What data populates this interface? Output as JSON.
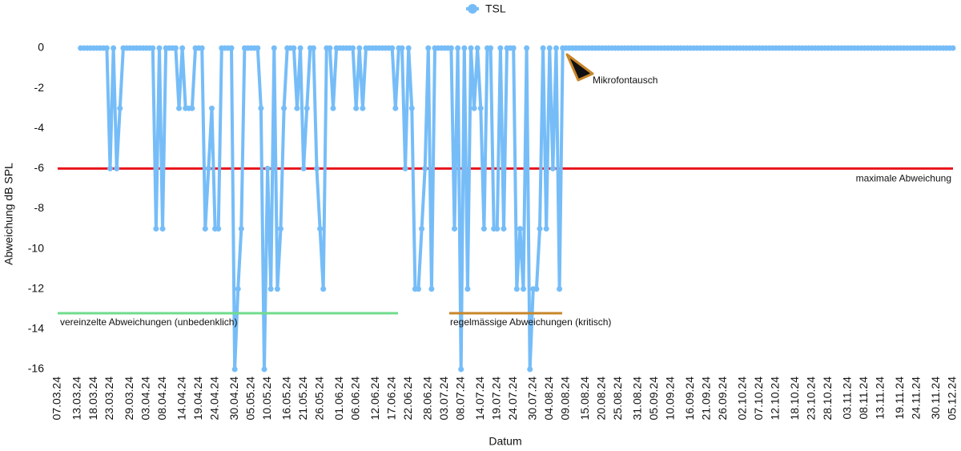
{
  "chart_data": {
    "type": "line",
    "legend": "top",
    "xlabel": "Datum",
    "ylabel": "Abweichung dB SPL",
    "ylim": [
      -16,
      0
    ],
    "yticks": [
      0,
      -2,
      -4,
      -6,
      -8,
      -10,
      -12,
      -14,
      -16
    ],
    "categories": [
      "07.03.24",
      null,
      null,
      null,
      null,
      null,
      "13.03.24",
      null,
      null,
      null,
      null,
      "18.03.24",
      null,
      null,
      null,
      null,
      "23.03.24",
      null,
      null,
      null,
      null,
      null,
      "29.03.24",
      null,
      null,
      null,
      null,
      "03.04.24",
      null,
      null,
      null,
      null,
      "08.04.24",
      null,
      null,
      null,
      null,
      null,
      "14.04.24",
      null,
      null,
      null,
      null,
      "19.04.24",
      null,
      null,
      null,
      null,
      "24.04.24",
      null,
      null,
      null,
      null,
      null,
      "30.04.24",
      null,
      null,
      null,
      null,
      "05.05.24",
      null,
      null,
      null,
      null,
      "10.05.24",
      null,
      null,
      null,
      null,
      null,
      "16.05.24",
      null,
      null,
      null,
      null,
      "21.05.24",
      null,
      null,
      null,
      null,
      "26.05.24",
      null,
      null,
      null,
      null,
      null,
      "01.06.24",
      null,
      null,
      null,
      null,
      "06.06.24",
      null,
      null,
      null,
      null,
      null,
      "12.06.24",
      null,
      null,
      null,
      null,
      "17.06.24",
      null,
      null,
      null,
      null,
      "22.06.24",
      null,
      null,
      null,
      null,
      null,
      "28.06.24",
      null,
      null,
      null,
      null,
      "03.07.24",
      null,
      null,
      null,
      null,
      "08.07.24",
      null,
      null,
      null,
      null,
      null,
      "14.07.24",
      null,
      null,
      null,
      null,
      "19.07.24",
      null,
      null,
      null,
      null,
      "24.07.24",
      null,
      null,
      null,
      null,
      null,
      "30.07.24",
      null,
      null,
      null,
      null,
      "04.08.24",
      null,
      null,
      null,
      null,
      "09.08.24",
      null,
      null,
      null,
      null,
      null,
      "15.08.24",
      null,
      null,
      null,
      null,
      "20.08.24",
      null,
      null,
      null,
      null,
      "25.08.24",
      null,
      null,
      null,
      null,
      null,
      "31.08.24",
      null,
      null,
      null,
      null,
      "05.09.24",
      null,
      null,
      null,
      null,
      "10.09.24",
      null,
      null,
      null,
      null,
      null,
      "16.09.24",
      null,
      null,
      null,
      null,
      "21.09.24",
      null,
      null,
      null,
      null,
      "26.09.24",
      null,
      null,
      null,
      null,
      null,
      "02.10.24",
      null,
      null,
      null,
      null,
      "07.10.24",
      null,
      null,
      null,
      null,
      "12.10.24",
      null,
      null,
      null,
      null,
      null,
      "18.10.24",
      null,
      null,
      null,
      null,
      "23.10.24",
      null,
      null,
      null,
      null,
      "28.10.24",
      null,
      null,
      null,
      null,
      null,
      "03.11.24",
      null,
      null,
      null,
      null,
      "08.11.24",
      null,
      null,
      null,
      null,
      "13.11.24",
      null,
      null,
      null,
      null,
      null,
      "19.11.24",
      null,
      null,
      null,
      null,
      "24.11.24",
      null,
      null,
      null,
      null,
      null,
      "30.11.24",
      null,
      null,
      null,
      null,
      "05.12.24"
    ],
    "series": [
      {
        "name": "TSL",
        "color": "#76bdf8",
        "values": [
          null,
          null,
          null,
          null,
          null,
          null,
          null,
          0,
          0,
          0,
          0,
          0,
          0,
          0,
          0,
          0,
          -6,
          0,
          -6,
          -3,
          0,
          0,
          0,
          0,
          0,
          0,
          0,
          0,
          0,
          0,
          -9,
          0,
          -9,
          0,
          0,
          0,
          0,
          -3,
          0,
          -3,
          -3,
          -3,
          0,
          0,
          0,
          -9,
          -6,
          -3,
          -9,
          -9,
          0,
          0,
          0,
          0,
          -16,
          -12,
          -9,
          0,
          0,
          0,
          0,
          0,
          -3,
          -16,
          -6,
          -12,
          0,
          -12,
          -9,
          -3,
          0,
          0,
          0,
          -3,
          0,
          -6,
          -3,
          0,
          0,
          -6,
          -9,
          -12,
          0,
          0,
          -3,
          0,
          0,
          0,
          0,
          0,
          0,
          -3,
          0,
          -3,
          0,
          0,
          0,
          0,
          0,
          0,
          0,
          0,
          0,
          -3,
          0,
          0,
          -6,
          0,
          -3,
          -12,
          -12,
          -9,
          -6,
          0,
          -12,
          0,
          0,
          0,
          0,
          0,
          0,
          -9,
          0,
          -16,
          0,
          -12,
          0,
          -3,
          0,
          -3,
          -9,
          0,
          0,
          -9,
          -9,
          0,
          -9,
          0,
          0,
          0,
          -12,
          -9,
          -12,
          0,
          -16,
          -12,
          -12,
          -9,
          0,
          -9,
          0,
          -6,
          0,
          -12,
          0,
          0,
          0,
          0,
          0,
          0,
          0,
          0,
          0,
          0,
          0,
          0,
          0,
          0,
          0,
          0,
          0,
          0,
          0,
          0,
          0,
          0,
          0,
          0,
          0,
          0,
          0,
          0,
          0,
          0,
          0,
          0,
          0,
          0,
          0,
          0,
          0,
          0,
          0,
          0,
          0,
          0,
          0,
          0,
          0,
          0,
          0,
          0,
          0,
          0,
          0,
          0,
          0,
          0,
          0,
          0,
          0,
          0,
          0,
          0,
          0,
          0,
          0,
          0,
          0,
          0,
          0,
          0,
          0,
          0,
          0,
          0,
          0,
          0,
          0,
          0,
          0,
          0,
          0,
          0,
          0,
          0,
          0,
          0,
          0,
          0,
          0,
          0,
          0,
          0,
          0,
          0,
          0,
          0,
          0,
          0,
          0,
          0,
          0,
          0,
          0,
          0,
          0,
          0,
          0,
          0,
          0,
          0,
          0,
          0,
          0,
          0,
          0,
          0,
          0,
          0,
          0,
          0,
          0,
          0
        ]
      }
    ],
    "reference_lines": [
      {
        "value": -6,
        "label": "maximale Abweichung",
        "color": "#e8151b"
      }
    ],
    "annotations": [
      {
        "text": "vereinzelte Abweichungen (unbedenklich)",
        "color": "#6fdc8c"
      },
      {
        "text": "regelmässige Abweichungen (kritisch)",
        "color": "#c8862a"
      },
      {
        "text": "Mikrofontausch"
      }
    ]
  }
}
